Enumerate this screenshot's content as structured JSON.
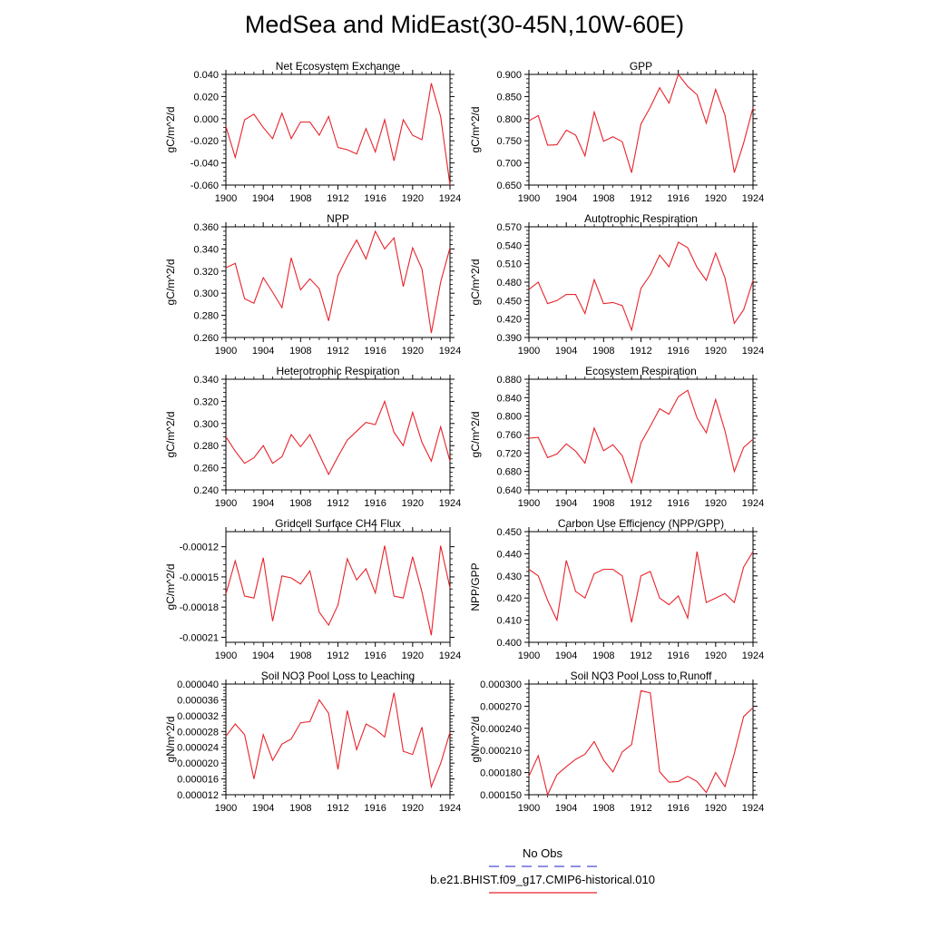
{
  "title": "MedSea and MidEast(30-45N,10W-60E)",
  "legend": {
    "entries": [
      {
        "label": "No Obs",
        "color": "#4a4ad6",
        "dash": true
      },
      {
        "label": "b.e21.BHIST.f09_g17.CMIP6-historical.010",
        "color": "#e8232b",
        "dash": false
      }
    ]
  },
  "colors": {
    "series": "#e8232b",
    "obs": "#4a4ad6"
  },
  "chart_data": [
    {
      "type": "line",
      "title": "Net Ecosystem Exchange",
      "ylabel": "gC/m^2/d",
      "xlim": [
        1900,
        1924
      ],
      "ylim": [
        -0.06,
        0.04
      ],
      "yticks": [
        -0.06,
        -0.04,
        -0.02,
        0.0,
        0.02,
        0.04
      ],
      "yticklabels": [
        "-0.060",
        "-0.040",
        "-0.020",
        "0.000",
        "0.020",
        "0.040"
      ],
      "xticks": [
        1900,
        1904,
        1908,
        1912,
        1916,
        1920,
        1924
      ],
      "series": [
        {
          "x": [
            1900,
            1901,
            1902,
            1903,
            1904,
            1905,
            1906,
            1907,
            1908,
            1909,
            1910,
            1911,
            1912,
            1913,
            1914,
            1915,
            1916,
            1917,
            1918,
            1919,
            1920,
            1921,
            1922,
            1923,
            1924
          ],
          "values": [
            -0.007,
            -0.035,
            -0.001,
            0.004,
            -0.008,
            -0.018,
            0.005,
            -0.018,
            -0.003,
            -0.003,
            -0.015,
            0.002,
            -0.026,
            -0.028,
            -0.032,
            -0.009,
            -0.03,
            -0.001,
            -0.038,
            -0.001,
            -0.015,
            -0.019,
            0.032,
            0.002,
            -0.06
          ]
        }
      ]
    },
    {
      "type": "line",
      "title": "GPP",
      "ylabel": "gC/m^2/d",
      "xlim": [
        1900,
        1924
      ],
      "ylim": [
        0.65,
        0.9
      ],
      "yticks": [
        0.65,
        0.7,
        0.75,
        0.8,
        0.85,
        0.9
      ],
      "yticklabels": [
        "0.650",
        "0.700",
        "0.750",
        "0.800",
        "0.850",
        "0.900"
      ],
      "xticks": [
        1900,
        1904,
        1908,
        1912,
        1916,
        1920,
        1924
      ],
      "series": [
        {
          "x": [
            1900,
            1901,
            1902,
            1903,
            1904,
            1905,
            1906,
            1907,
            1908,
            1909,
            1910,
            1911,
            1912,
            1913,
            1914,
            1915,
            1916,
            1917,
            1918,
            1919,
            1920,
            1921,
            1922,
            1923,
            1924
          ],
          "values": [
            0.795,
            0.807,
            0.74,
            0.741,
            0.774,
            0.763,
            0.716,
            0.815,
            0.749,
            0.759,
            0.748,
            0.678,
            0.788,
            0.826,
            0.87,
            0.835,
            0.9,
            0.873,
            0.854,
            0.79,
            0.866,
            0.808,
            0.678,
            0.745,
            0.825
          ]
        }
      ]
    },
    {
      "type": "line",
      "title": "NPP",
      "ylabel": "gC/m^2/d",
      "xlim": [
        1900,
        1924
      ],
      "ylim": [
        0.26,
        0.36
      ],
      "yticks": [
        0.26,
        0.28,
        0.3,
        0.32,
        0.34,
        0.36
      ],
      "yticklabels": [
        "0.260",
        "0.280",
        "0.300",
        "0.320",
        "0.340",
        "0.360"
      ],
      "xticks": [
        1900,
        1904,
        1908,
        1912,
        1916,
        1920,
        1924
      ],
      "series": [
        {
          "x": [
            1900,
            1901,
            1902,
            1903,
            1904,
            1905,
            1906,
            1907,
            1908,
            1909,
            1910,
            1911,
            1912,
            1913,
            1914,
            1915,
            1916,
            1917,
            1918,
            1919,
            1920,
            1921,
            1922,
            1923,
            1924
          ],
          "values": [
            0.323,
            0.327,
            0.295,
            0.291,
            0.314,
            0.301,
            0.287,
            0.332,
            0.303,
            0.313,
            0.304,
            0.275,
            0.316,
            0.333,
            0.348,
            0.331,
            0.356,
            0.34,
            0.35,
            0.306,
            0.341,
            0.322,
            0.264,
            0.31,
            0.341
          ]
        }
      ]
    },
    {
      "type": "line",
      "title": "Autotrophic Respiration",
      "ylabel": "gC/m^2/d",
      "xlim": [
        1900,
        1924
      ],
      "ylim": [
        0.39,
        0.57
      ],
      "yticks": [
        0.39,
        0.42,
        0.45,
        0.48,
        0.51,
        0.54,
        0.57
      ],
      "yticklabels": [
        "0.390",
        "0.420",
        "0.450",
        "0.480",
        "0.510",
        "0.540",
        "0.570"
      ],
      "xticks": [
        1900,
        1904,
        1908,
        1912,
        1916,
        1920,
        1924
      ],
      "series": [
        {
          "x": [
            1900,
            1901,
            1902,
            1903,
            1904,
            1905,
            1906,
            1907,
            1908,
            1909,
            1910,
            1911,
            1912,
            1913,
            1914,
            1915,
            1916,
            1917,
            1918,
            1919,
            1920,
            1921,
            1922,
            1923,
            1924
          ],
          "values": [
            0.468,
            0.48,
            0.445,
            0.45,
            0.46,
            0.46,
            0.429,
            0.484,
            0.445,
            0.447,
            0.442,
            0.402,
            0.47,
            0.492,
            0.524,
            0.505,
            0.545,
            0.536,
            0.504,
            0.483,
            0.527,
            0.487,
            0.413,
            0.435,
            0.483
          ]
        }
      ]
    },
    {
      "type": "line",
      "title": "Heterotrophic Respiration",
      "ylabel": "gC/m^2/d",
      "xlim": [
        1900,
        1924
      ],
      "ylim": [
        0.24,
        0.34
      ],
      "yticks": [
        0.24,
        0.26,
        0.28,
        0.3,
        0.32,
        0.34
      ],
      "yticklabels": [
        "0.240",
        "0.260",
        "0.280",
        "0.300",
        "0.320",
        "0.340"
      ],
      "xticks": [
        1900,
        1904,
        1908,
        1912,
        1916,
        1920,
        1924
      ],
      "series": [
        {
          "x": [
            1900,
            1901,
            1902,
            1903,
            1904,
            1905,
            1906,
            1907,
            1908,
            1909,
            1910,
            1911,
            1912,
            1913,
            1914,
            1915,
            1916,
            1917,
            1918,
            1919,
            1920,
            1921,
            1922,
            1923,
            1924
          ],
          "values": [
            0.288,
            0.275,
            0.264,
            0.269,
            0.28,
            0.264,
            0.27,
            0.29,
            0.279,
            0.29,
            0.272,
            0.254,
            0.27,
            0.285,
            0.293,
            0.301,
            0.299,
            0.32,
            0.292,
            0.28,
            0.31,
            0.283,
            0.266,
            0.297,
            0.266
          ]
        }
      ]
    },
    {
      "type": "line",
      "title": "Ecosystem Respiration",
      "ylabel": "gC/m^2/d",
      "xlim": [
        1900,
        1924
      ],
      "ylim": [
        0.64,
        0.88
      ],
      "yticks": [
        0.64,
        0.68,
        0.72,
        0.76,
        0.8,
        0.84,
        0.88
      ],
      "yticklabels": [
        "0.640",
        "0.680",
        "0.720",
        "0.760",
        "0.800",
        "0.840",
        "0.880"
      ],
      "xticks": [
        1900,
        1904,
        1908,
        1912,
        1916,
        1920,
        1924
      ],
      "series": [
        {
          "x": [
            1900,
            1901,
            1902,
            1903,
            1904,
            1905,
            1906,
            1907,
            1908,
            1909,
            1910,
            1911,
            1912,
            1913,
            1914,
            1915,
            1916,
            1917,
            1918,
            1919,
            1920,
            1921,
            1922,
            1923,
            1924
          ],
          "values": [
            0.752,
            0.754,
            0.71,
            0.718,
            0.74,
            0.724,
            0.698,
            0.774,
            0.725,
            0.738,
            0.714,
            0.656,
            0.742,
            0.778,
            0.816,
            0.804,
            0.842,
            0.856,
            0.796,
            0.764,
            0.836,
            0.768,
            0.68,
            0.732,
            0.75
          ]
        }
      ]
    },
    {
      "type": "line",
      "title": "Gridcell Surface CH4 Flux",
      "ylabel": "gC/m^2/d",
      "xlim": [
        1900,
        1924
      ],
      "ylim": [
        -0.000215,
        -0.000105
      ],
      "yticks": [
        -0.00021,
        -0.00018,
        -0.00015,
        -0.00012
      ],
      "yticklabels": [
        "-0.00021",
        "-0.00018",
        "-0.00015",
        "-0.00012"
      ],
      "xticks": [
        1900,
        1904,
        1908,
        1912,
        1916,
        1920,
        1924
      ],
      "series": [
        {
          "x": [
            1900,
            1901,
            1902,
            1903,
            1904,
            1905,
            1906,
            1907,
            1908,
            1909,
            1910,
            1911,
            1912,
            1913,
            1914,
            1915,
            1916,
            1917,
            1918,
            1919,
            1920,
            1921,
            1922,
            1923,
            1924
          ],
          "values": [
            -0.000167,
            -0.000134,
            -0.000169,
            -0.000171,
            -0.000131,
            -0.000194,
            -0.000149,
            -0.000151,
            -0.000157,
            -0.000144,
            -0.000185,
            -0.000198,
            -0.000178,
            -0.000132,
            -0.000153,
            -0.000142,
            -0.000166,
            -0.000119,
            -0.000169,
            -0.000171,
            -0.00013,
            -0.000165,
            -0.000208,
            -0.000119,
            -0.000161
          ]
        }
      ]
    },
    {
      "type": "line",
      "title": "Carbon Use Efficiency (NPP/GPP)",
      "ylabel": "NPP/GPP",
      "xlim": [
        1900,
        1924
      ],
      "ylim": [
        0.4,
        0.45
      ],
      "yticks": [
        0.4,
        0.41,
        0.42,
        0.43,
        0.44,
        0.45
      ],
      "yticklabels": [
        "0.400",
        "0.410",
        "0.420",
        "0.430",
        "0.440",
        "0.450"
      ],
      "xticks": [
        1900,
        1904,
        1908,
        1912,
        1916,
        1920,
        1924
      ],
      "series": [
        {
          "x": [
            1900,
            1901,
            1902,
            1903,
            1904,
            1905,
            1906,
            1907,
            1908,
            1909,
            1910,
            1911,
            1912,
            1913,
            1914,
            1915,
            1916,
            1917,
            1918,
            1919,
            1920,
            1921,
            1922,
            1923,
            1924
          ],
          "values": [
            0.433,
            0.43,
            0.419,
            0.41,
            0.437,
            0.423,
            0.42,
            0.431,
            0.433,
            0.433,
            0.43,
            0.409,
            0.43,
            0.432,
            0.42,
            0.417,
            0.421,
            0.411,
            0.441,
            0.418,
            0.42,
            0.422,
            0.418,
            0.434,
            0.441
          ]
        }
      ]
    },
    {
      "type": "line",
      "title": "Soil NO3 Pool Loss to Leaching",
      "ylabel": "gN/m^2/d",
      "xlim": [
        1900,
        1924
      ],
      "ylim": [
        1.2e-05,
        4e-05
      ],
      "yticks": [
        1.2e-05,
        1.6e-05,
        2e-05,
        2.4e-05,
        2.8e-05,
        3.2e-05,
        3.6e-05,
        4e-05
      ],
      "yticklabels": [
        "0.000012",
        "0.000016",
        "0.000020",
        "0.000024",
        "0.000028",
        "0.000032",
        "0.000036",
        "0.000040"
      ],
      "xticks": [
        1900,
        1904,
        1908,
        1912,
        1916,
        1920,
        1924
      ],
      "series": [
        {
          "x": [
            1900,
            1901,
            1902,
            1903,
            1904,
            1905,
            1906,
            1907,
            1908,
            1909,
            1910,
            1911,
            1912,
            1913,
            1914,
            1915,
            1916,
            1917,
            1918,
            1919,
            1920,
            1921,
            1922,
            1923,
            1924
          ],
          "values": [
            2.68e-05,
            2.99e-05,
            2.72e-05,
            1.6e-05,
            2.72e-05,
            2.07e-05,
            2.48e-05,
            2.61e-05,
            3.02e-05,
            3.05e-05,
            3.6e-05,
            3.26e-05,
            1.84e-05,
            3.33e-05,
            2.34e-05,
            2.99e-05,
            2.86e-05,
            2.66e-05,
            3.78e-05,
            2.3e-05,
            2.22e-05,
            2.91e-05,
            1.4e-05,
            1.99e-05,
            2.78e-05
          ]
        }
      ]
    },
    {
      "type": "line",
      "title": "Soil NO3 Pool Loss to Runoff",
      "ylabel": "gN/m^2/d",
      "xlim": [
        1900,
        1924
      ],
      "ylim": [
        0.00015,
        0.0003
      ],
      "yticks": [
        0.00015,
        0.00018,
        0.00021,
        0.00024,
        0.00027,
        0.0003
      ],
      "yticklabels": [
        "0.000150",
        "0.000180",
        "0.000210",
        "0.000240",
        "0.000270",
        "0.000300"
      ],
      "xticks": [
        1900,
        1904,
        1908,
        1912,
        1916,
        1920,
        1924
      ],
      "series": [
        {
          "x": [
            1900,
            1901,
            1902,
            1903,
            1904,
            1905,
            1906,
            1907,
            1908,
            1909,
            1910,
            1911,
            1912,
            1913,
            1914,
            1915,
            1916,
            1917,
            1918,
            1919,
            1920,
            1921,
            1922,
            1923,
            1924
          ],
          "values": [
            0.000175,
            0.000203,
            0.00015,
            0.000177,
            0.000188,
            0.000198,
            0.000205,
            0.000222,
            0.000197,
            0.000181,
            0.000208,
            0.000218,
            0.000291,
            0.000288,
            0.000181,
            0.000167,
            0.000168,
            0.000175,
            0.000168,
            0.000153,
            0.00018,
            0.000161,
            0.000206,
            0.000256,
            0.000268
          ]
        }
      ]
    }
  ]
}
